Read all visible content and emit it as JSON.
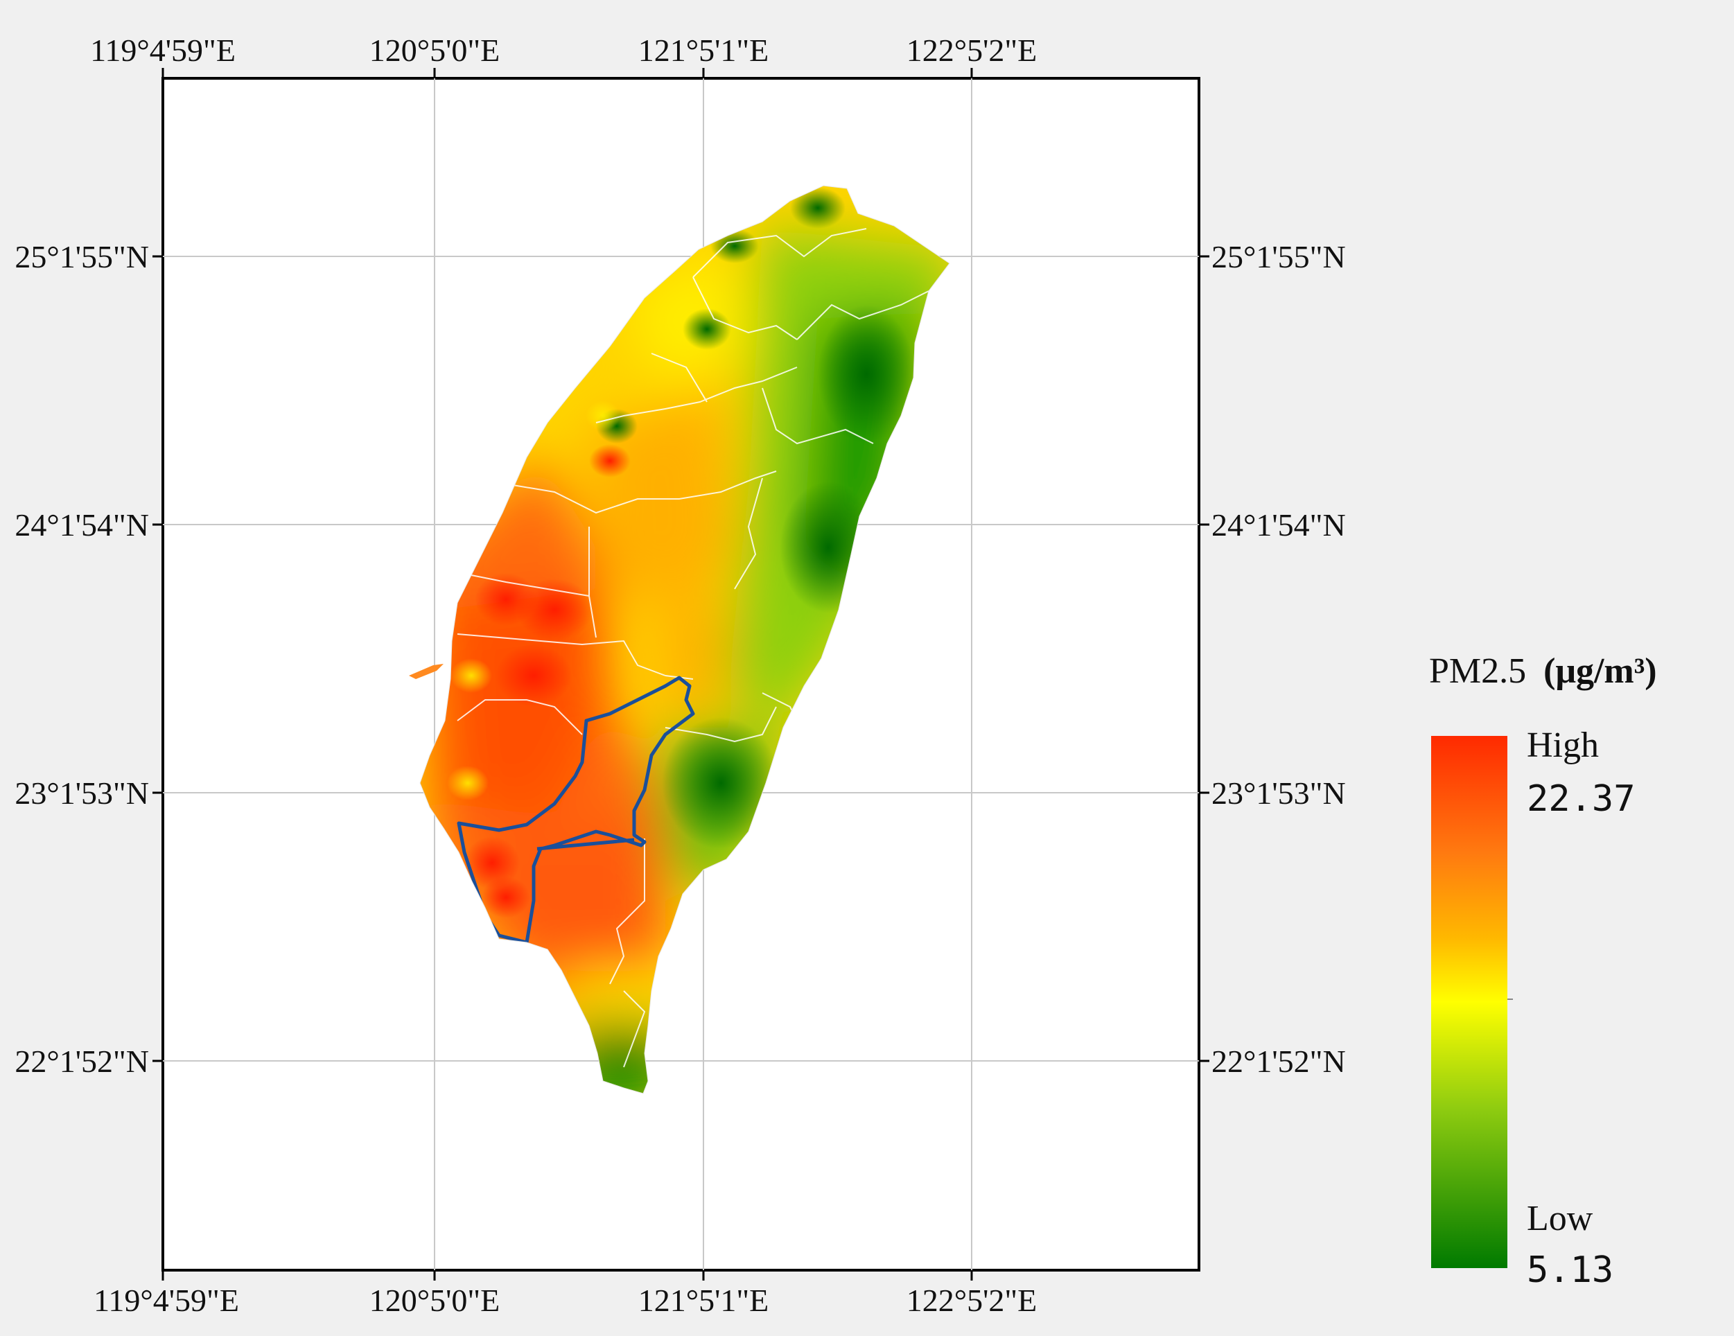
{
  "map": {
    "top_lon_labels": [
      "119°4'59\"E",
      "120°5'0\"E",
      "121°5'1\"E",
      "122°5'2\"E"
    ],
    "bottom_lon_labels": [
      "119°4'59\"E",
      "120°5'0\"E",
      "121°5'1\"E",
      "122°5'2\"E"
    ],
    "left_lat_labels": [
      "25°1'55\"N",
      "24°1'54\"N",
      "23°1'53\"N",
      "22°1'52\"N"
    ],
    "right_lat_labels": [
      "25°1'55\"N",
      "24°1'54\"N",
      "23°1'53\"N",
      "22°1'52\"N"
    ],
    "highlight_region_color": "#1a4f9a",
    "boundary_color": "#ffffff"
  },
  "legend": {
    "title": "PM2.5",
    "unit": "(μg/m³)",
    "high_word": "High",
    "high_value": "22.37",
    "low_word": "Low",
    "low_value": "5.13",
    "colors": [
      "#ff2a00",
      "#ff7a10",
      "#ffb800",
      "#ffff00",
      "#8fcc10",
      "#007a00"
    ]
  }
}
